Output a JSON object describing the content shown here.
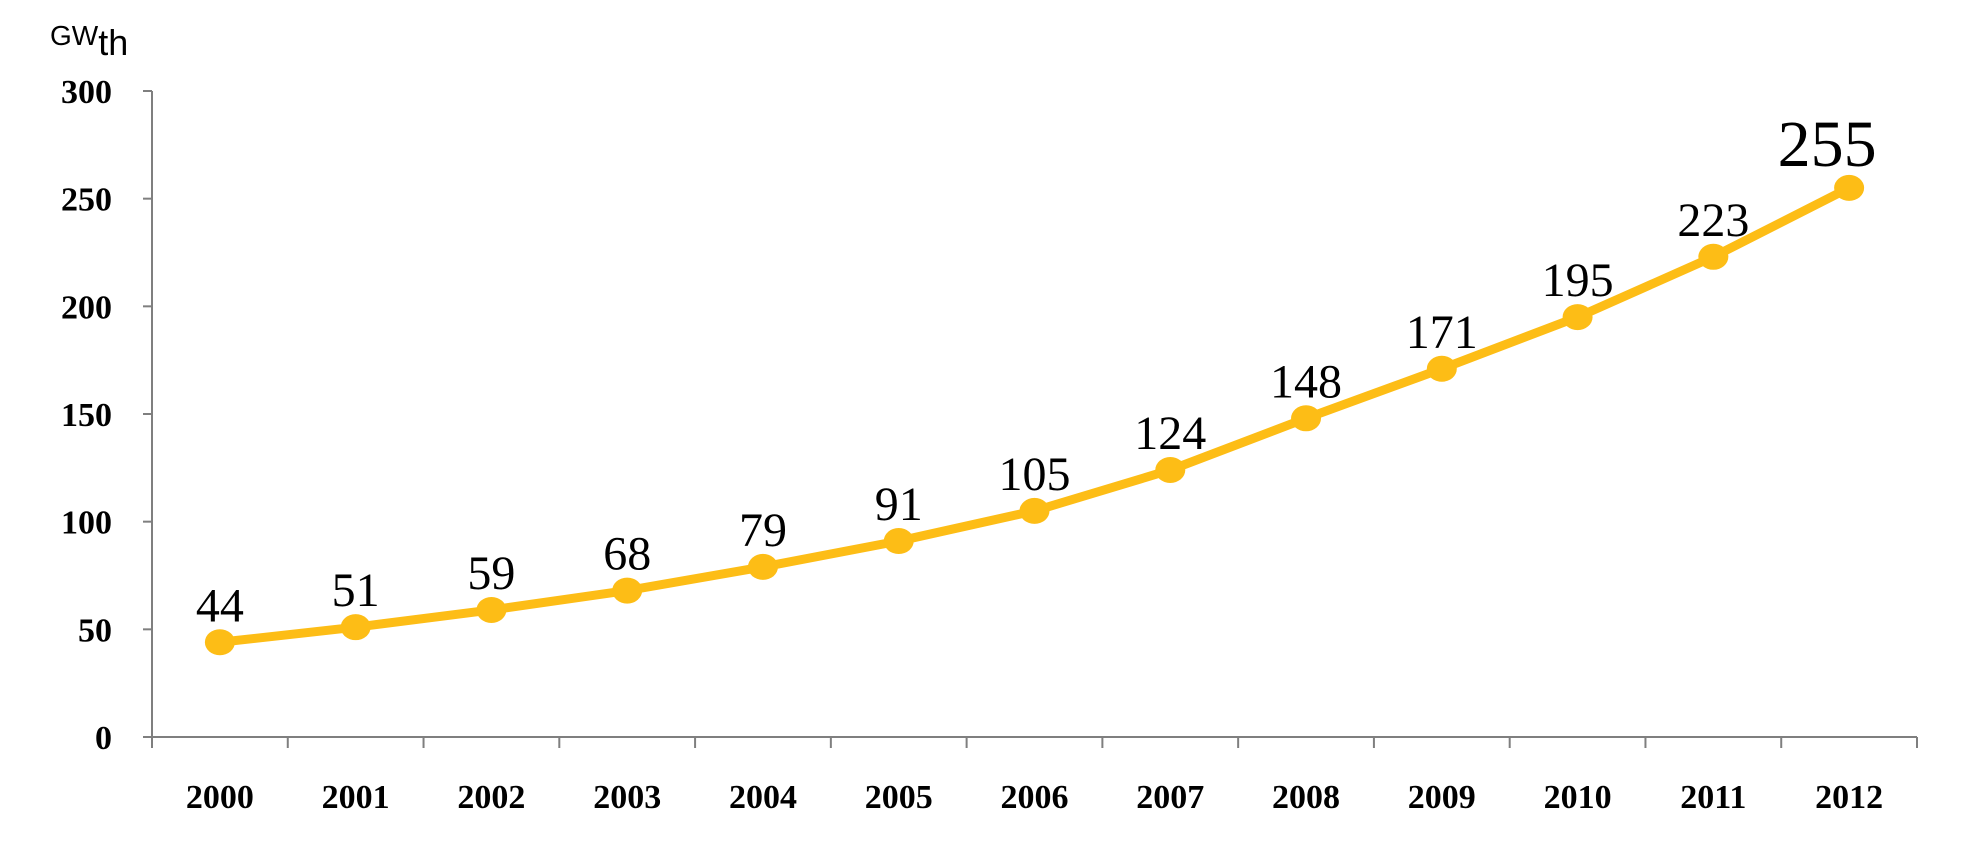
{
  "chart_data": {
    "type": "line",
    "unit_label": {
      "main": "GW",
      "sub": "th"
    },
    "categories": [
      "2000",
      "2001",
      "2002",
      "2003",
      "2004",
      "2005",
      "2006",
      "2007",
      "2008",
      "2009",
      "2010",
      "2011",
      "2012"
    ],
    "series": [
      {
        "values": [
          44,
          51,
          59,
          68,
          79,
          91,
          105,
          124,
          148,
          171,
          195,
          223,
          255
        ],
        "color": "#FDBD16"
      }
    ],
    "data_labels": [
      "44",
      "51",
      "59",
      "68",
      "79",
      "91",
      "105",
      "124",
      "148",
      "171",
      "195",
      "223",
      "255"
    ],
    "y_ticks": [
      "0",
      "50",
      "100",
      "150",
      "200",
      "250",
      "300"
    ],
    "ylim": [
      0,
      300
    ],
    "grid": false,
    "legend": "none",
    "title": "",
    "xlabel": "",
    "ylabel": ""
  }
}
